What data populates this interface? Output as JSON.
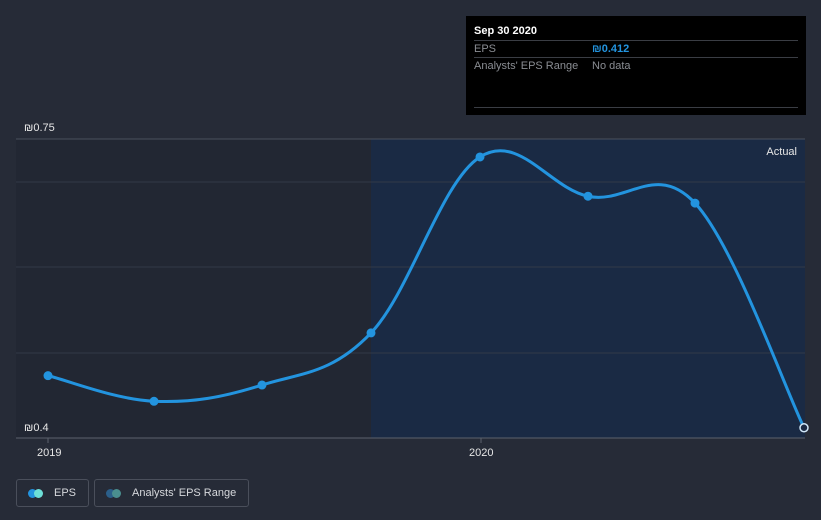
{
  "tooltip": {
    "date": "Sep 30 2020",
    "rows": [
      {
        "label": "EPS",
        "value": "₪0.412"
      },
      {
        "label": "Analysts' EPS Range",
        "value": "No data"
      }
    ]
  },
  "region_label": "Actual",
  "legend": [
    {
      "label": "EPS",
      "color1": "#2394df",
      "color2": "#6de0d8"
    },
    {
      "label": "Analysts' EPS Range",
      "color1": "#2b5f8a",
      "color2": "#4a8f8f"
    }
  ],
  "colors": {
    "background": "#262b37",
    "past_region": "#222733",
    "actual_region": "#1a2a44",
    "line": "#2394df",
    "gridline": "#3a404d",
    "axis": "#5c616c"
  },
  "chart_data": {
    "type": "line",
    "title": "",
    "xlabel": "",
    "ylabel": "EPS",
    "currency": "₪",
    "ylim": [
      0.4,
      0.75
    ],
    "y_tick_labels": [
      "₪0.75",
      "₪0.4"
    ],
    "x_tick_labels": [
      "2019",
      "2020"
    ],
    "grid": true,
    "legend_position": "bottom-left",
    "x": [
      "Dec 2018",
      "Mar 2019",
      "Jun 2019",
      "Sep 2019",
      "Dec 2019",
      "Mar 2020",
      "Jun 2020",
      "Sep 2020"
    ],
    "series": [
      {
        "name": "EPS",
        "values": [
          0.473,
          0.443,
          0.462,
          0.523,
          0.729,
          0.683,
          0.675,
          0.412
        ]
      }
    ],
    "annotations": [
      "Actual"
    ],
    "highlighted_point": {
      "x": "Sep 2020",
      "value": 0.412
    }
  }
}
